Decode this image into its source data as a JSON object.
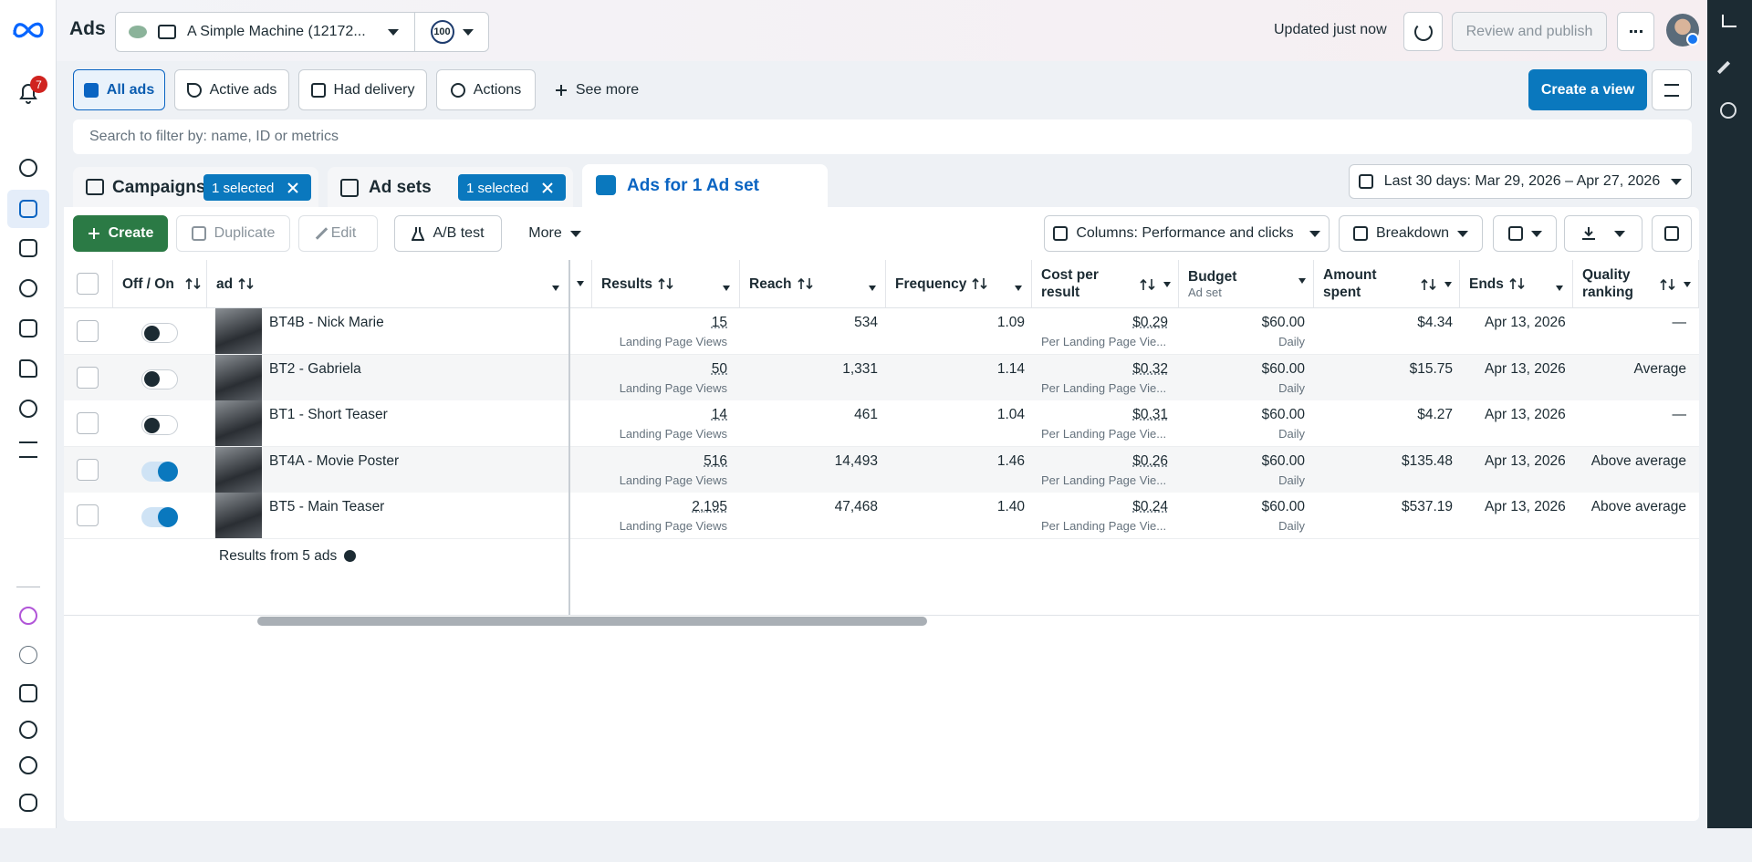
{
  "header": {
    "app": "Ads",
    "account": "A Simple Machine (12172...",
    "score": "100",
    "status": "Updated just now",
    "publish": "Review and publish"
  },
  "notifications": "7",
  "filters": {
    "tabs": [
      "All ads",
      "Active ads",
      "Had delivery",
      "Actions"
    ],
    "see_more": "See more",
    "create_view": "Create a view",
    "search_placeholder": "Search to filter by: name, ID or metrics"
  },
  "levels": {
    "campaigns": "Campaigns",
    "campaigns_selected": "1 selected",
    "ad_sets": "Ad sets",
    "ad_sets_selected": "1 selected",
    "ads": "Ads for 1 Ad set"
  },
  "date_range": "Last 30 days: Mar 29, 2026 – Apr 27, 2026",
  "toolbar": {
    "create": "Create",
    "duplicate": "Duplicate",
    "edit": "Edit",
    "ab_test": "A/B test",
    "more": "More",
    "columns": "Columns: Performance and clicks",
    "breakdown": "Breakdown"
  },
  "table": {
    "columns": [
      {
        "label": "Off / On"
      },
      {
        "label": "ad"
      },
      {
        "label": "Results"
      },
      {
        "label": "Reach"
      },
      {
        "label": "Frequency"
      },
      {
        "label": "Cost per result"
      },
      {
        "label": "Budget",
        "sub": "Ad set"
      },
      {
        "label": "Amount spent"
      },
      {
        "label": "Ends"
      },
      {
        "label": "Quality ranking"
      }
    ],
    "rows": [
      {
        "on": false,
        "name": "BT4B - Nick Marie",
        "results": "15",
        "results_sub": "Landing Page Views",
        "reach": "534",
        "frequency": "1.09",
        "cost": "$0.29",
        "cost_sub": "Per Landing Page Vie...",
        "budget": "$60.00",
        "budget_sub": "Daily",
        "spent": "$4.34",
        "ends": "Apr 13, 2026",
        "quality": "—"
      },
      {
        "on": false,
        "name": "BT2 - Gabriela",
        "results": "50",
        "results_sub": "Landing Page Views",
        "reach": "1,331",
        "frequency": "1.14",
        "cost": "$0.32",
        "cost_sub": "Per Landing Page Vie...",
        "budget": "$60.00",
        "budget_sub": "Daily",
        "spent": "$15.75",
        "ends": "Apr 13, 2026",
        "quality": "Average"
      },
      {
        "on": false,
        "name": "BT1 - Short Teaser",
        "results": "14",
        "results_sub": "Landing Page Views",
        "reach": "461",
        "frequency": "1.04",
        "cost": "$0.31",
        "cost_sub": "Per Landing Page Vie...",
        "budget": "$60.00",
        "budget_sub": "Daily",
        "spent": "$4.27",
        "ends": "Apr 13, 2026",
        "quality": "—"
      },
      {
        "on": true,
        "name": "BT4A - Movie Poster",
        "results": "516",
        "results_sub": "Landing Page Views",
        "reach": "14,493",
        "frequency": "1.46",
        "cost": "$0.26",
        "cost_sub": "Per Landing Page Vie...",
        "budget": "$60.00",
        "budget_sub": "Daily",
        "spent": "$135.48",
        "ends": "Apr 13, 2026",
        "quality": "Above average"
      },
      {
        "on": true,
        "name": "BT5 - Main Teaser",
        "results": "2,195",
        "results_sub": "Landing Page Views",
        "reach": "47,468",
        "frequency": "1.40",
        "cost": "$0.24",
        "cost_sub": "Per Landing Page Vie...",
        "budget": "$60.00",
        "budget_sub": "Daily",
        "spent": "$537.19",
        "ends": "Apr 13, 2026",
        "quality": "Above average"
      }
    ],
    "footer": "Results from 5 ads"
  }
}
